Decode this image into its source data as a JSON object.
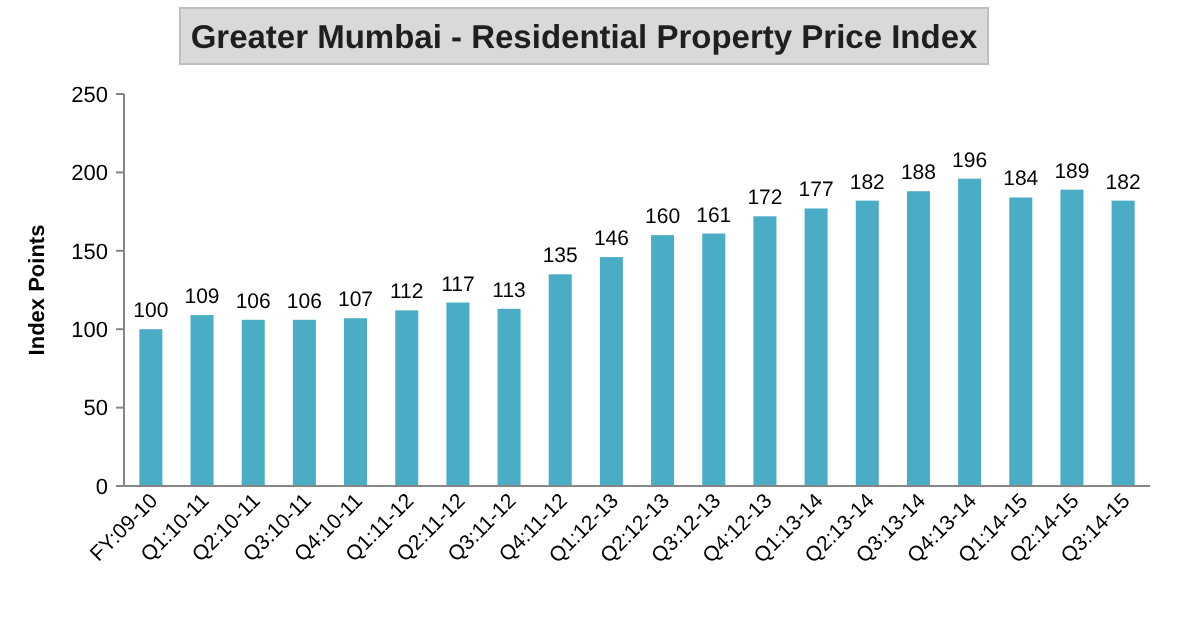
{
  "chart_data": {
    "type": "bar",
    "title": "Greater Mumbai  - Residential Property Price Index",
    "ylabel": "Index Points",
    "categories": [
      "FY:09-10",
      "Q1:10-11",
      "Q2:10-11",
      "Q3:10-11",
      "Q4:10-11",
      "Q1:11-12",
      "Q2:11-12",
      "Q3:11-12",
      "Q4:11-12",
      "Q1:12-13",
      "Q2:12-13",
      "Q3:12-13",
      "Q4:12-13",
      "Q1:13-14",
      "Q2:13-14",
      "Q3:13-14",
      "Q4:13-14",
      "Q1:14-15",
      "Q2:14-15",
      "Q3:14-15"
    ],
    "values": [
      100,
      109,
      106,
      106,
      107,
      112,
      117,
      113,
      135,
      146,
      160,
      161,
      172,
      177,
      182,
      188,
      196,
      184,
      189,
      182
    ],
    "color": "#4bacc6",
    "ylim": [
      0,
      250
    ],
    "yticks": [
      0,
      50,
      100,
      150,
      200,
      250
    ],
    "grid": false,
    "data_labels": true
  }
}
